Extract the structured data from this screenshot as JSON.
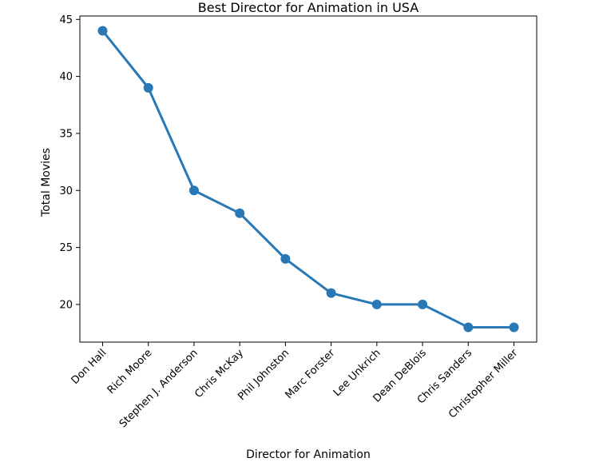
{
  "chart_data": {
    "type": "line",
    "title": "Best Director for Animation in USA",
    "xlabel": "Director for Animation",
    "ylabel": "Total Movies",
    "categories": [
      "Don Hall",
      "Rich Moore",
      "Stephen J. Anderson",
      "Chris McKay",
      "Phil Johnston",
      "Marc Forster",
      "Lee Unkrich",
      "Dean DeBlois",
      "Chris Sanders",
      "Christopher Miller"
    ],
    "values": [
      44,
      39,
      30,
      28,
      24,
      21,
      20,
      20,
      18,
      18
    ],
    "ylim": [
      16.7,
      45.3
    ],
    "yticks": [
      20,
      25,
      30,
      35,
      40,
      45
    ],
    "grid": false,
    "color": "#2878b5"
  }
}
